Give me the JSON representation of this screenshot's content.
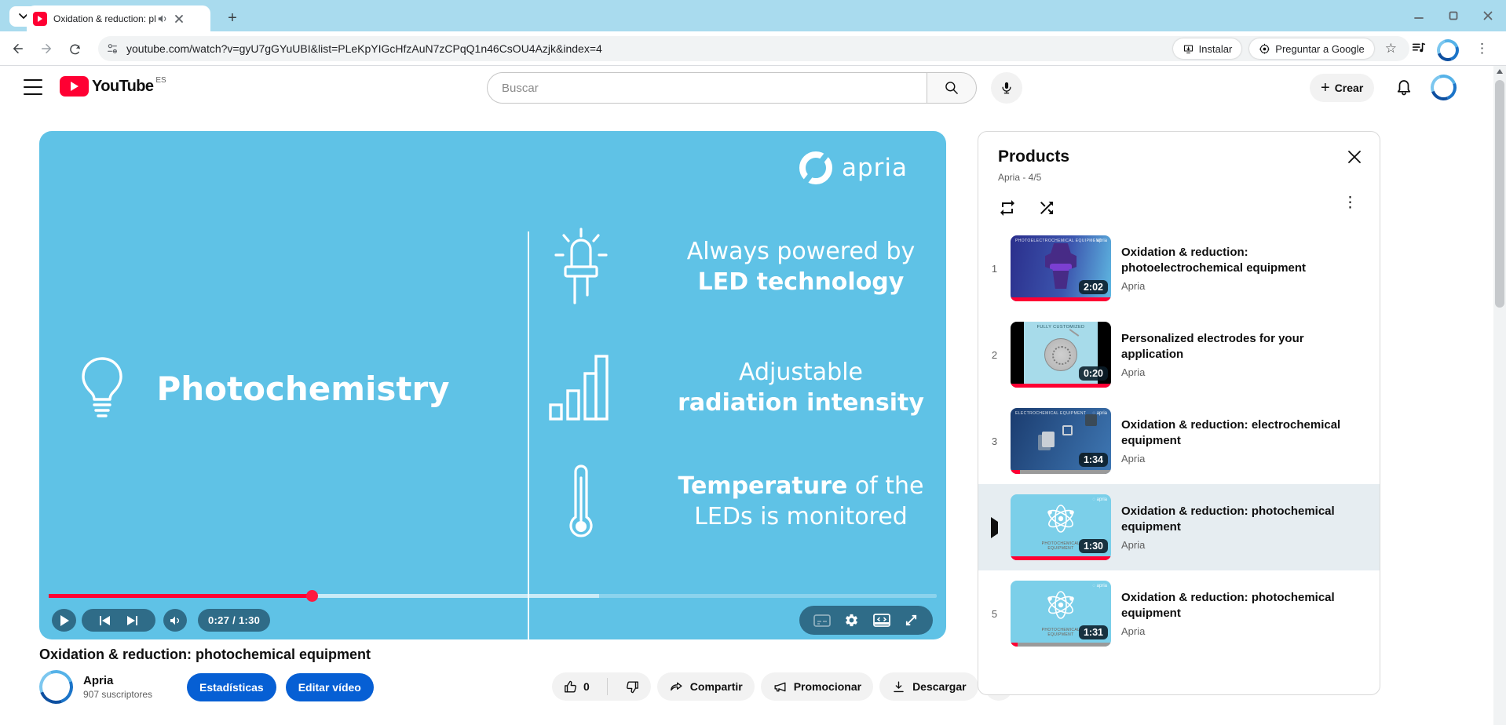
{
  "browser": {
    "tab_title": "Oxidation & reduction: pho",
    "url": "youtube.com/watch?v=gyU7gGYuUBI&list=PLeKpYIGcHfzAuN7zCPqQ1n46CsOU4Azjk&index=4",
    "install_label": "Instalar",
    "ask_google_label": "Preguntar a Google"
  },
  "header": {
    "logo_text": "YouTube",
    "region": "ES",
    "search_placeholder": "Buscar",
    "create_label": "Crear"
  },
  "player": {
    "brand": "apria",
    "heading": "Photochemistry",
    "features": [
      {
        "line1": "Always powered by",
        "line2": "LED technology"
      },
      {
        "line1": "Adjustable",
        "line2": "radiation intensity"
      },
      {
        "line1_bold": "Temperature",
        "line1_rest": " of the",
        "line2": "LEDs is monitored"
      }
    ],
    "time": "0:27 / 1:30",
    "played_pct": 29.7,
    "buffered_pct": 62
  },
  "video": {
    "title": "Oxidation & reduction: photochemical equipment"
  },
  "channel": {
    "name": "Apria",
    "subscribers": "907 suscriptores",
    "stats_label": "Estadísticas",
    "edit_label": "Editar vídeo"
  },
  "actions": {
    "like_count": "0",
    "share_label": "Compartir",
    "promote_label": "Promocionar",
    "download_label": "Descargar",
    "more_label": "•••"
  },
  "playlist": {
    "title": "Products",
    "subtitle": "Apria - 4/5",
    "items": [
      {
        "index": "1",
        "title": "Oxidation & reduction: photoelectrochemical equipment",
        "channel": "Apria",
        "duration": "2:02",
        "watched_pct": 100,
        "style": "navy",
        "caption": "PHOTOELECTROCHEMICAL EQUIPMENT",
        "current": false
      },
      {
        "index": "2",
        "title": "Personalized electrodes for your application",
        "channel": "Apria",
        "duration": "0:20",
        "watched_pct": 100,
        "style": "disc",
        "caption": "FULLY CUSTOMIZED",
        "current": false
      },
      {
        "index": "3",
        "title": "Oxidation & reduction: electrochemical equipment",
        "channel": "Apria",
        "duration": "1:34",
        "watched_pct": 9,
        "style": "chips",
        "caption": "ELECTROCHEMICAL EQUIPMENT",
        "current": false
      },
      {
        "index": "4",
        "title": "Oxidation & reduction: photochemical equipment",
        "channel": "Apria",
        "duration": "1:30",
        "watched_pct": 100,
        "style": "atom",
        "caption": "PHOTOCHEMICAL EQUIPMENT",
        "current": true
      },
      {
        "index": "5",
        "title": "Oxidation & reduction: photochemical equipment",
        "channel": "Apria",
        "duration": "1:31",
        "watched_pct": 7,
        "style": "atom",
        "caption": "PHOTOCHEMICAL EQUIPMENT",
        "current": false
      }
    ]
  },
  "colors": {
    "chrome_theme": "#A9DBEE",
    "slide_blue": "#5FC2E6",
    "accent_red": "#FF0033",
    "button_blue": "#065FD4",
    "current_row": "#E6EDF1"
  }
}
